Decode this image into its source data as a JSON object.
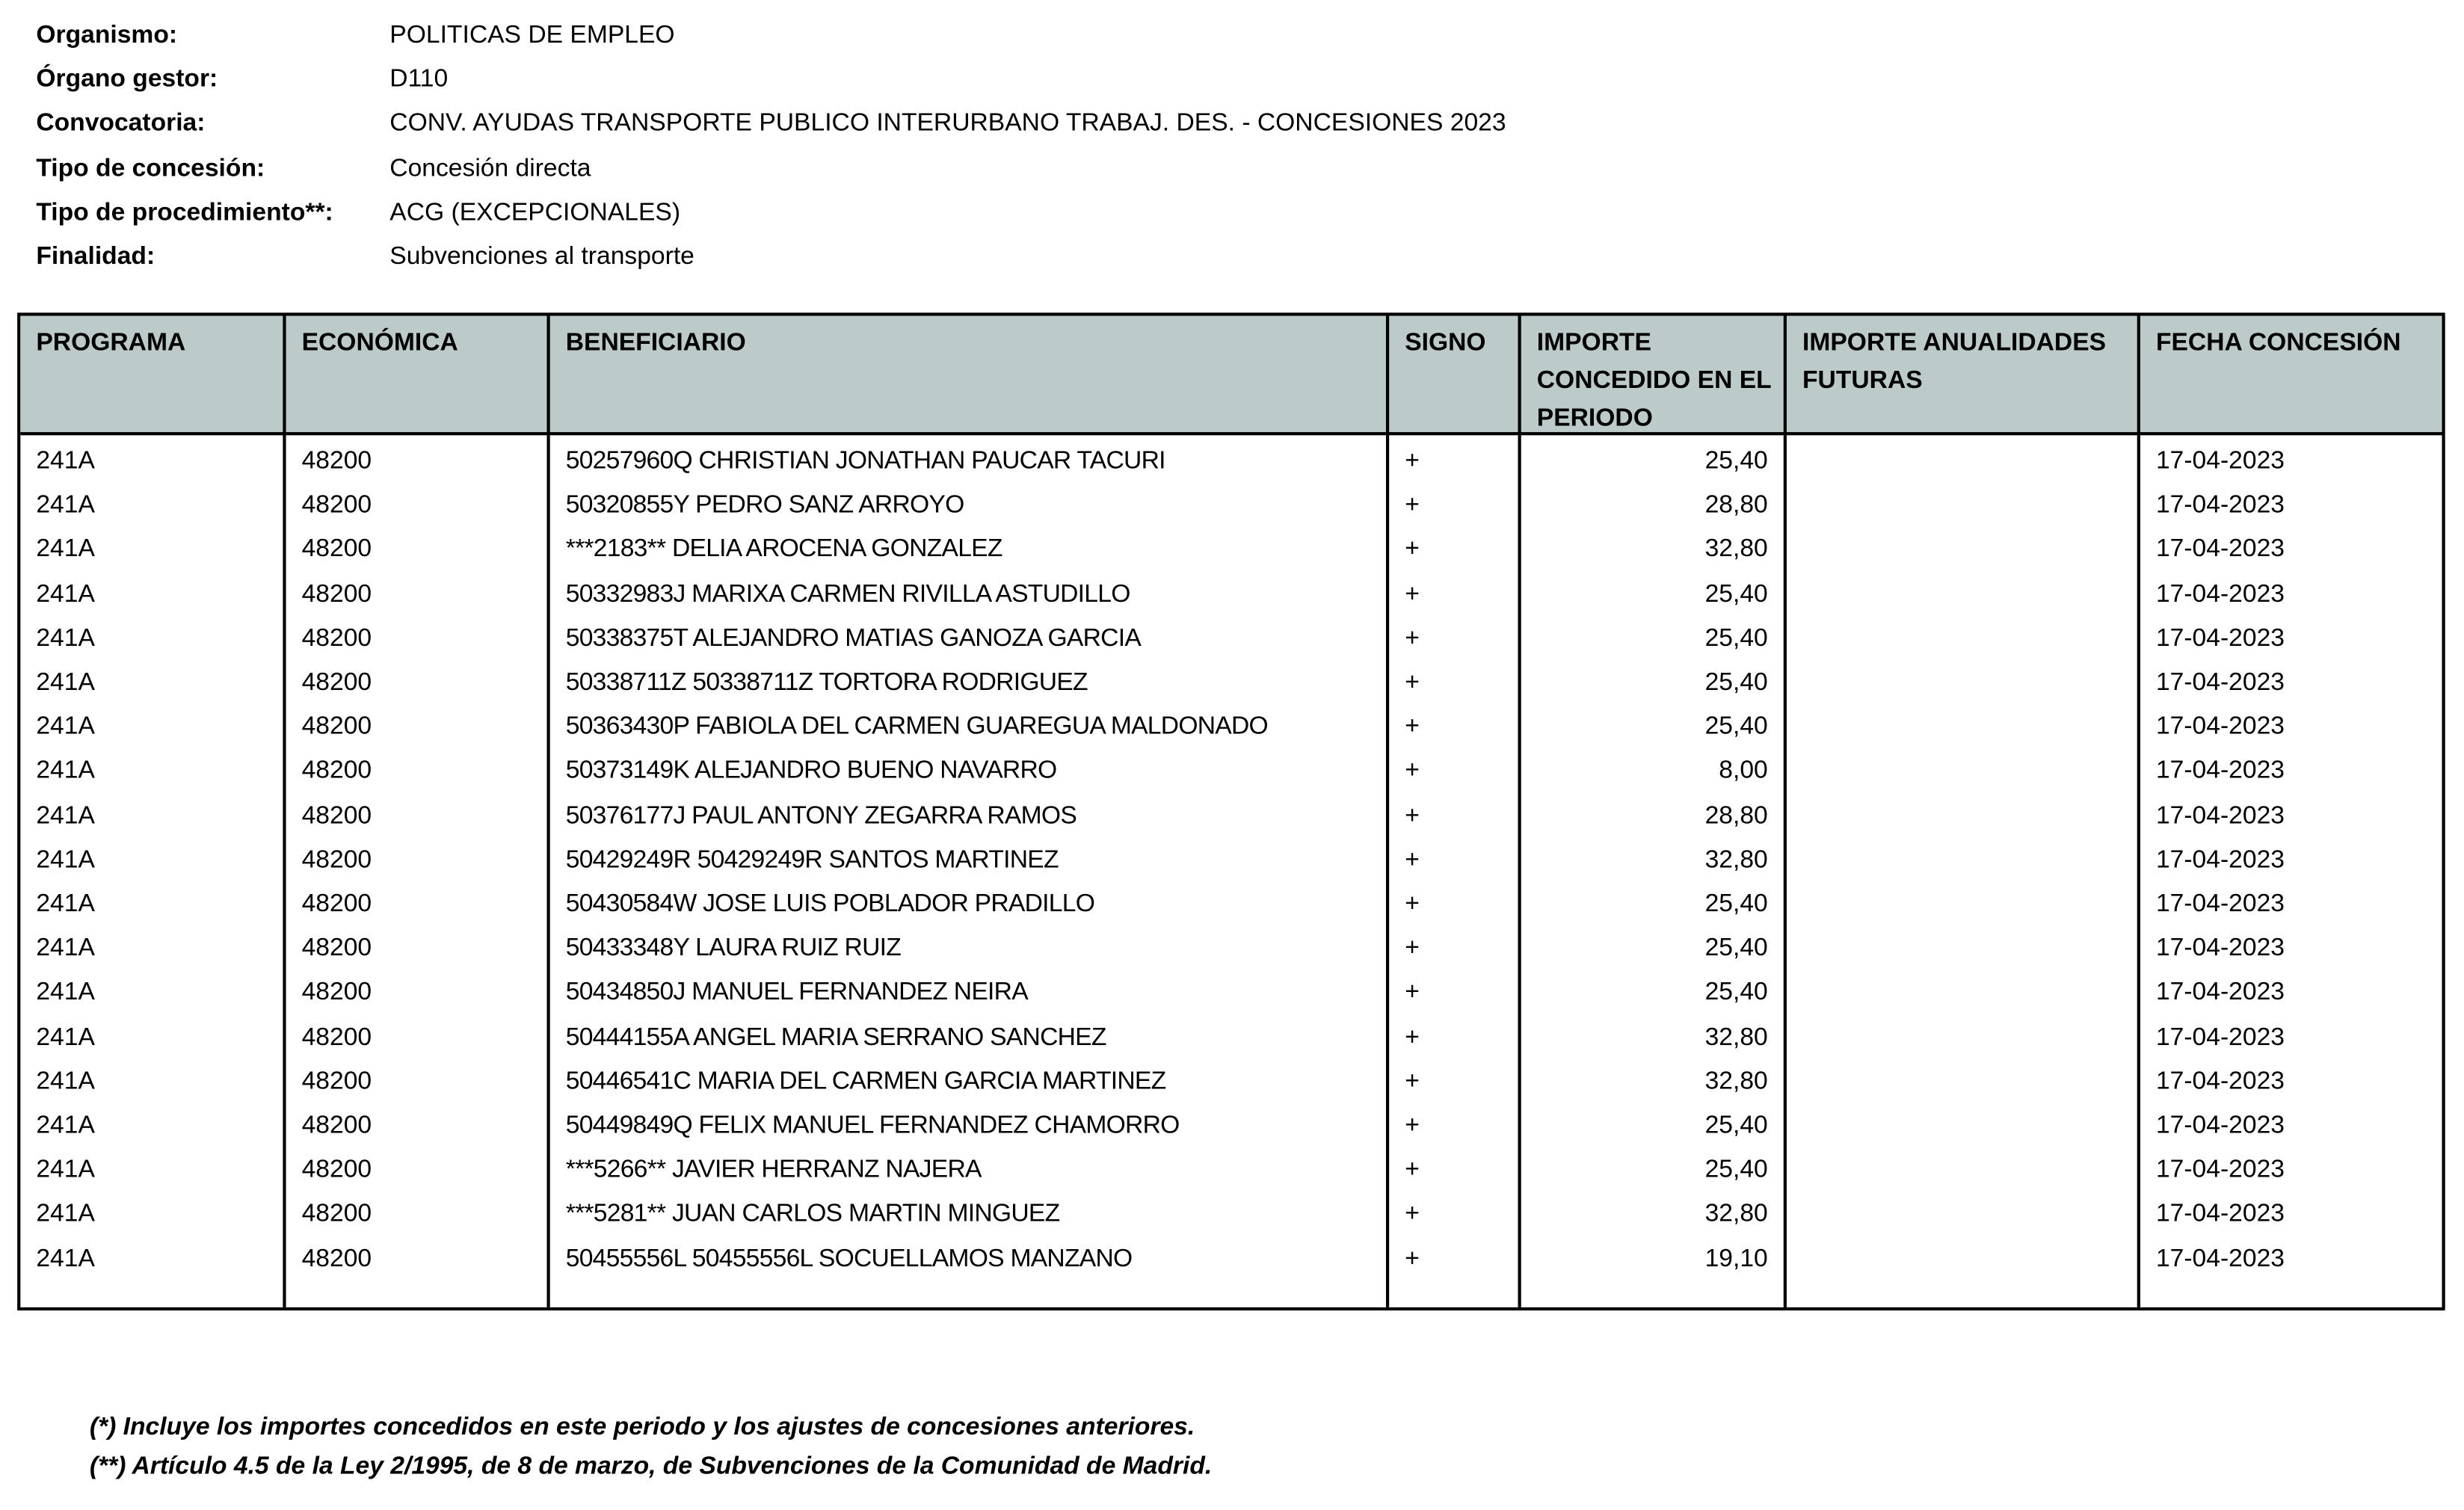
{
  "info": [
    {
      "label": "Organismo:",
      "value": "POLITICAS DE EMPLEO"
    },
    {
      "label": "Órgano gestor:",
      "value": "D110"
    },
    {
      "label": "Convocatoria:",
      "value": "CONV. AYUDAS TRANSPORTE PUBLICO INTERURBANO TRABAJ. DES. - CONCESIONES 2023"
    },
    {
      "label": "Tipo de concesión:",
      "value": "Concesión directa"
    },
    {
      "label": "Tipo de procedimiento**:",
      "value": "ACG (EXCEPCIONALES)"
    },
    {
      "label": "Finalidad:",
      "value": "Subvenciones al transporte"
    }
  ],
  "table": {
    "header_bg": "#bccbca",
    "headers": [
      "PROGRAMA",
      "ECONÓMICA",
      "BENEFICIARIO",
      "SIGNO",
      "IMPORTE CONCEDIDO EN EL PERIODO",
      "IMPORTE ANUALIDADES FUTURAS",
      "FECHA CONCESIÓN"
    ],
    "rows": [
      [
        "241A",
        "48200",
        "50257960Q CHRISTIAN JONATHAN PAUCAR TACURI",
        "+",
        "25,40",
        "",
        "17-04-2023"
      ],
      [
        "241A",
        "48200",
        "50320855Y PEDRO SANZ ARROYO",
        "+",
        "28,80",
        "",
        "17-04-2023"
      ],
      [
        "241A",
        "48200",
        "***2183** DELIA AROCENA GONZALEZ",
        "+",
        "32,80",
        "",
        "17-04-2023"
      ],
      [
        "241A",
        "48200",
        "50332983J MARIXA CARMEN RIVILLA ASTUDILLO",
        "+",
        "25,40",
        "",
        "17-04-2023"
      ],
      [
        "241A",
        "48200",
        "50338375T ALEJANDRO MATIAS GANOZA GARCIA",
        "+",
        "25,40",
        "",
        "17-04-2023"
      ],
      [
        "241A",
        "48200",
        "50338711Z 50338711Z TORTORA RODRIGUEZ",
        "+",
        "25,40",
        "",
        "17-04-2023"
      ],
      [
        "241A",
        "48200",
        "50363430P FABIOLA DEL CARMEN GUAREGUA MALDONADO",
        "+",
        "25,40",
        "",
        "17-04-2023"
      ],
      [
        "241A",
        "48200",
        "50373149K ALEJANDRO BUENO NAVARRO",
        "+",
        "8,00",
        "",
        "17-04-2023"
      ],
      [
        "241A",
        "48200",
        "50376177J PAUL ANTONY ZEGARRA RAMOS",
        "+",
        "28,80",
        "",
        "17-04-2023"
      ],
      [
        "241A",
        "48200",
        "50429249R 50429249R SANTOS MARTINEZ",
        "+",
        "32,80",
        "",
        "17-04-2023"
      ],
      [
        "241A",
        "48200",
        "50430584W JOSE LUIS POBLADOR PRADILLO",
        "+",
        "25,40",
        "",
        "17-04-2023"
      ],
      [
        "241A",
        "48200",
        "50433348Y LAURA RUIZ RUIZ",
        "+",
        "25,40",
        "",
        "17-04-2023"
      ],
      [
        "241A",
        "48200",
        "50434850J MANUEL FERNANDEZ NEIRA",
        "+",
        "25,40",
        "",
        "17-04-2023"
      ],
      [
        "241A",
        "48200",
        "50444155A ANGEL MARIA SERRANO SANCHEZ",
        "+",
        "32,80",
        "",
        "17-04-2023"
      ],
      [
        "241A",
        "48200",
        "50446541C MARIA DEL CARMEN GARCIA MARTINEZ",
        "+",
        "32,80",
        "",
        "17-04-2023"
      ],
      [
        "241A",
        "48200",
        "50449849Q FELIX MANUEL FERNANDEZ CHAMORRO",
        "+",
        "25,40",
        "",
        "17-04-2023"
      ],
      [
        "241A",
        "48200",
        "***5266** JAVIER HERRANZ NAJERA",
        "+",
        "25,40",
        "",
        "17-04-2023"
      ],
      [
        "241A",
        "48200",
        "***5281** JUAN CARLOS MARTIN MINGUEZ",
        "+",
        "32,80",
        "",
        "17-04-2023"
      ],
      [
        "241A",
        "48200",
        "50455556L 50455556L SOCUELLAMOS MANZANO",
        "+",
        "19,10",
        "",
        "17-04-2023"
      ]
    ]
  },
  "footnotes": [
    "(*) Incluye los importes concedidos en este periodo y los ajustes de concesiones anteriores.",
    "(**) Artículo 4.5 de la Ley 2/1995, de 8 de marzo, de Subvenciones de la Comunidad de Madrid."
  ]
}
